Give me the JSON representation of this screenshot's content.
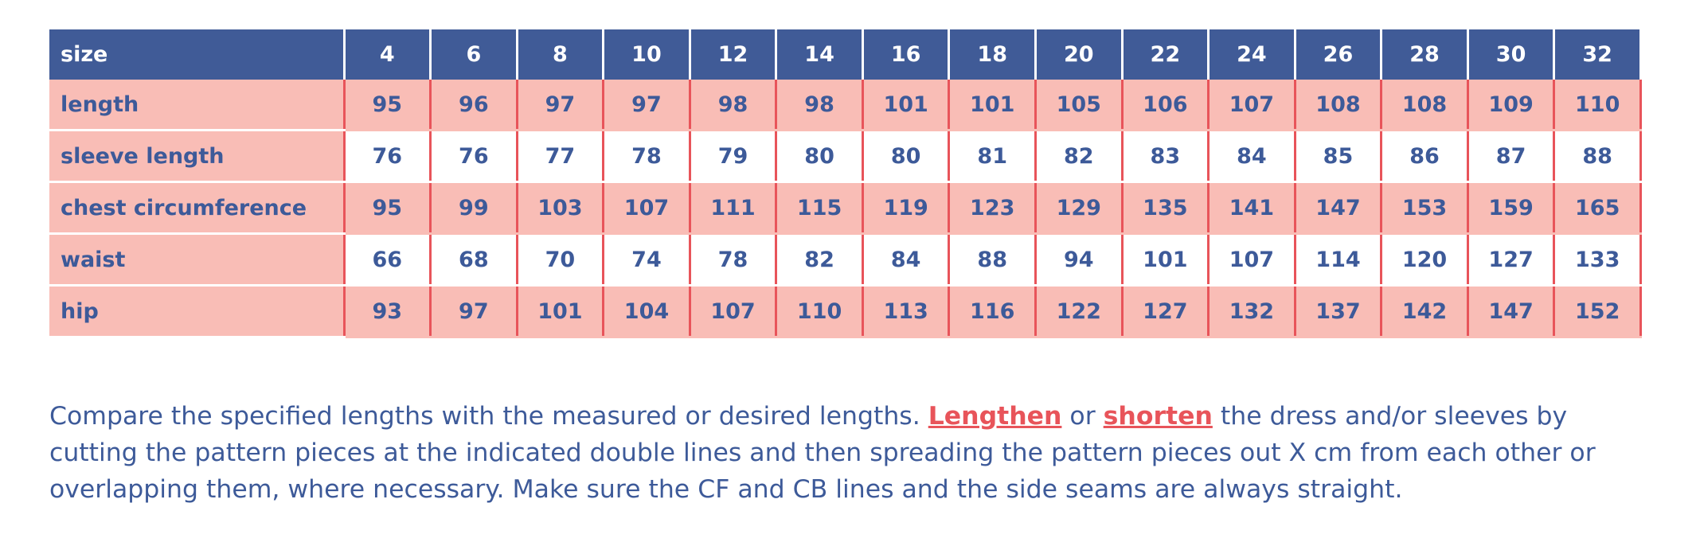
{
  "table": {
    "header": [
      "size",
      "4",
      "6",
      "8",
      "10",
      "12",
      "14",
      "16",
      "18",
      "20",
      "22",
      "24",
      "26",
      "28",
      "30",
      "32"
    ],
    "rows": [
      [
        "length",
        "95",
        "96",
        "97",
        "97",
        "98",
        "98",
        "101",
        "101",
        "105",
        "106",
        "107",
        "108",
        "108",
        "109",
        "110"
      ],
      [
        "sleeve length",
        "76",
        "76",
        "77",
        "78",
        "79",
        "80",
        "80",
        "81",
        "82",
        "83",
        "84",
        "85",
        "86",
        "87",
        "88"
      ],
      [
        "chest circumference",
        "95",
        "99",
        "103",
        "107",
        "111",
        "115",
        "119",
        "123",
        "129",
        "135",
        "141",
        "147",
        "153",
        "159",
        "165"
      ],
      [
        "waist",
        "66",
        "68",
        "70",
        "74",
        "78",
        "82",
        "84",
        "88",
        "94",
        "101",
        "107",
        "114",
        "120",
        "127",
        "133"
      ],
      [
        "hip",
        "93",
        "97",
        "101",
        "104",
        "107",
        "110",
        "113",
        "116",
        "122",
        "127",
        "132",
        "137",
        "142",
        "147",
        "152"
      ]
    ]
  },
  "paragraph": {
    "text_1": "Compare the specified lengths with the measured or desired lengths. ",
    "link_1": "Lengthen",
    "text_2": " or ",
    "link_2": "shorten",
    "text_3": " the dress and/or sleeves by cutting the pattern pieces at the indicated double lines and then spreading the pattern pieces out X cm from each other or overlapping them, where necessary. Make sure the CF and CB lines and the side seams are always straight."
  }
}
